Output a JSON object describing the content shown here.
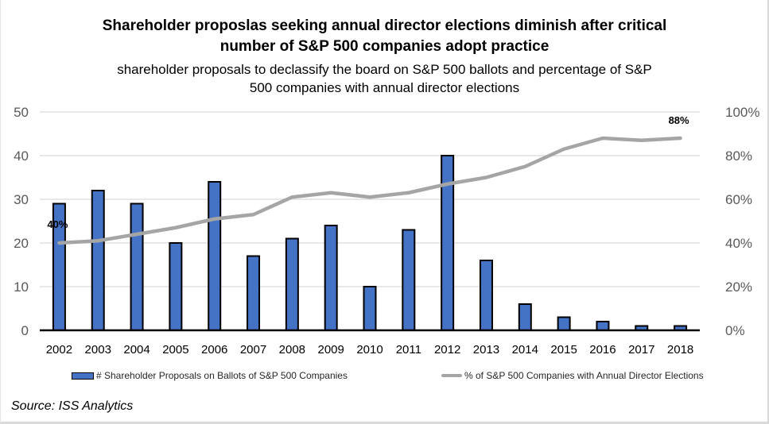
{
  "chart_data": {
    "type": "bar+line",
    "title": "Shareholder proposlas seeking annual director elections diminish after critical number of S&P 500 companies adopt practice",
    "title_lines": [
      "Shareholder proposlas seeking annual director elections diminish after critical",
      "number of S&P 500 companies adopt practice"
    ],
    "subtitle_lines": [
      "shareholder proposals to declassify the board on S&P 500 ballots and percentage of S&P",
      "500 companies with annual director elections"
    ],
    "categories": [
      "2002",
      "2003",
      "2004",
      "2005",
      "2006",
      "2007",
      "2008",
      "2009",
      "2010",
      "2011",
      "2012",
      "2013",
      "2014",
      "2015",
      "2016",
      "2017",
      "2018"
    ],
    "series": [
      {
        "name": "# Shareholder Proposals on Ballots of S&P 500 Companies",
        "type": "bar",
        "axis": "left",
        "color": "#4472c4",
        "values": [
          29,
          32,
          29,
          20,
          34,
          17,
          21,
          24,
          10,
          23,
          40,
          16,
          6,
          3,
          2,
          1,
          1
        ]
      },
      {
        "name": "% of S&P 500 Companies with Annual Director Elections",
        "type": "line",
        "axis": "right",
        "color": "#a5a5a5",
        "values": [
          40,
          41,
          44,
          47,
          51,
          53,
          61,
          63,
          61,
          63,
          67,
          70,
          75,
          83,
          88,
          87,
          88
        ]
      }
    ],
    "annotations": [
      {
        "category": "2002",
        "series": 1,
        "text": "40%"
      },
      {
        "category": "2018",
        "series": 1,
        "text": "88%"
      }
    ],
    "left_axis": {
      "ylim": [
        0,
        50
      ],
      "ticks": [
        "0",
        "10",
        "20",
        "30",
        "40",
        "50"
      ],
      "tick_values": [
        0,
        10,
        20,
        30,
        40,
        50
      ]
    },
    "right_axis": {
      "ylim": [
        0,
        100
      ],
      "ticks": [
        "0%",
        "20%",
        "40%",
        "60%",
        "80%",
        "100%"
      ],
      "tick_values": [
        0,
        20,
        40,
        60,
        80,
        100
      ]
    },
    "xlabel": "",
    "ylabel": "",
    "grid": true,
    "legend_position": "bottom"
  },
  "legend": {
    "bar_label": "# Shareholder Proposals on Ballots of S&P 500 Companies",
    "line_label": "% of S&P 500 Companies with Annual Director Elections"
  },
  "source": "Source: ISS Analytics"
}
